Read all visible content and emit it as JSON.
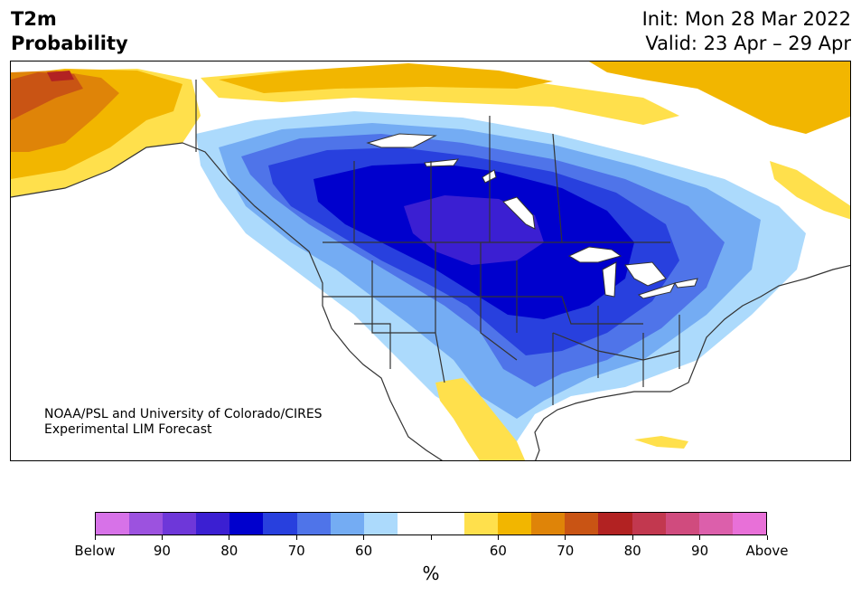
{
  "header": {
    "title_line1": "T2m",
    "title_line2": "Probability",
    "init": "Init: Mon 28 Mar 2022",
    "valid": "Valid: 23 Apr – 29 Apr"
  },
  "credit": {
    "line1": "NOAA/PSL and University of Colorado/CIRES",
    "line2": "Experimental LIM Forecast"
  },
  "colorbar": {
    "unit": "%",
    "colors": [
      "#d772e8",
      "#9c52df",
      "#6e37d9",
      "#3b1fd2",
      "#0000cd",
      "#2840de",
      "#4f74e9",
      "#74acf3",
      "#acdafc",
      "#ffffff",
      "#ffffff",
      "#ffe04c",
      "#f2b600",
      "#df8408",
      "#c95414",
      "#b22222",
      "#c2384f",
      "#d04b7e",
      "#dc5fab",
      "#e870d8"
    ],
    "tick_labels": [
      "Below",
      "90",
      "80",
      "70",
      "60",
      "",
      "60",
      "70",
      "80",
      "90",
      "Above"
    ]
  },
  "map": {
    "legend_colors": {
      "cold_light": "#acdafc",
      "cold_mid": "#74acf3",
      "cold_mid2": "#4f74e9",
      "cold_strong": "#2840de",
      "cold_deep": "#0000cd",
      "cold_extreme": "#3b1fd2",
      "warm_light": "#ffe04c",
      "warm_mid": "#f2b600",
      "warm_strong": "#df8408",
      "warm_deep": "#c95414",
      "warm_extreme": "#b22222"
    }
  }
}
